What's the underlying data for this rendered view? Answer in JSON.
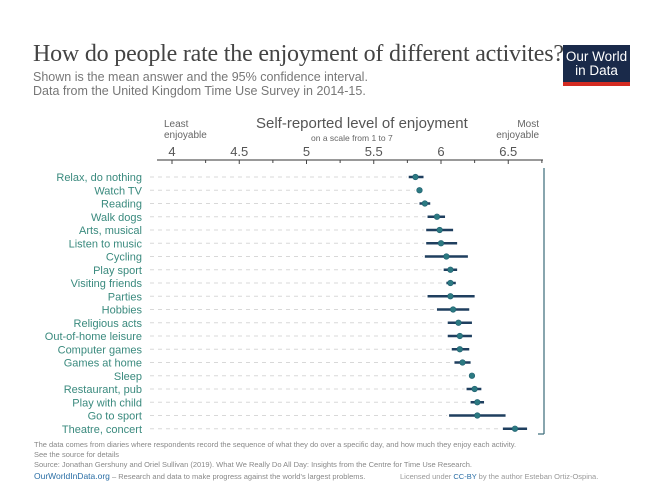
{
  "header": {
    "title": "How do people rate the enjoyment of different activites?",
    "subtitle_line1": "Shown is the mean answer and the 95% confidence interval.",
    "subtitle_line2": "Data from the United Kingdom Time Use Survey in 2014-15.",
    "logo_line1": "Our World",
    "logo_line2": "in Data"
  },
  "colors": {
    "label": "#3a8a7e",
    "dot": "#2c7a82",
    "ci": "#1f3f5f",
    "logo_bg": "#1a2a4a",
    "logo_bar": "#d42b21"
  },
  "chart_data": {
    "type": "scatter",
    "title": "Self-reported level of enjoyment",
    "xlabel": "Self-reported level of enjoyment",
    "xlabel_sub": "on a scale from 1 to 7",
    "left_annotation": "Least enjoyable",
    "right_annotation": "Most enjoyable",
    "xlim": [
      3.89,
      6.76
    ],
    "xticks": [
      4,
      4.5,
      5,
      5.5,
      6,
      6.5
    ],
    "xtick_labels": [
      "4",
      "4.5",
      "5",
      "5.5",
      "6",
      "6.5"
    ],
    "grid": false,
    "categories": [
      "Relax, do nothing",
      "Watch TV",
      "Reading",
      "Walk dogs",
      "Arts, musical",
      "Listen to music",
      "Cycling",
      "Play sport",
      "Visiting friends",
      "Parties",
      "Hobbies",
      "Religious acts",
      "Out-of-home leisure",
      "Computer games",
      "Games at home",
      "Sleep",
      "Restaurant, pub",
      "Play with child",
      "Go to sport",
      "Theatre, concert"
    ],
    "mean": [
      5.81,
      5.84,
      5.88,
      5.97,
      5.99,
      6.0,
      6.04,
      6.07,
      6.07,
      6.07,
      6.09,
      6.13,
      6.14,
      6.14,
      6.16,
      6.23,
      6.25,
      6.27,
      6.27,
      6.55
    ],
    "ci_low": [
      5.76,
      5.82,
      5.84,
      5.9,
      5.89,
      5.89,
      5.88,
      6.02,
      6.04,
      5.9,
      5.97,
      6.05,
      6.05,
      6.08,
      6.1,
      6.21,
      6.19,
      6.22,
      6.06,
      6.46
    ],
    "ci_high": [
      5.87,
      5.86,
      5.92,
      6.03,
      6.09,
      6.12,
      6.2,
      6.12,
      6.11,
      6.25,
      6.21,
      6.23,
      6.23,
      6.21,
      6.22,
      6.25,
      6.3,
      6.32,
      6.48,
      6.64
    ]
  },
  "footer": {
    "note1": "The data comes from diaries where respondents record the sequence of what they do over a specific day, and how much they enjoy each activity.",
    "note2": "See the source for details",
    "source": "Source: Jonathan Gershuny and Oriel Sullivan (2019). What We Really Do All Day: Insights from the Centre for Time Use Research.",
    "owid_link": "OurWorldInData.org",
    "owid_tagline": " – Research and data to make progress against the world’s largest problems.",
    "license_pre": "Licensed under ",
    "license_cc": "CC-BY",
    "license_post": " by the author Esteban Ortiz-Ospina."
  }
}
